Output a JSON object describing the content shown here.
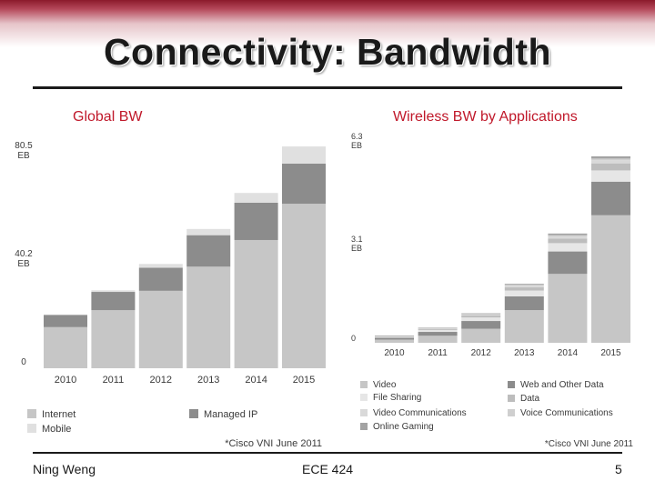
{
  "slide": {
    "title": "Connectivity: Bandwidth",
    "subtitle_left": "Global BW",
    "subtitle_right": "Wireless BW by Applications"
  },
  "footer": {
    "author": "Ning Weng",
    "course": "ECE 424",
    "page": "5"
  },
  "colors": {
    "brand_red": "#c0182a",
    "band_red": "#8b1a2b"
  },
  "chart_data": [
    {
      "type": "bar",
      "stacked": true,
      "title": "Global BW",
      "categories": [
        "2010",
        "2011",
        "2012",
        "2013",
        "2014",
        "2015"
      ],
      "ylim": [
        0,
        80.5
      ],
      "yticks": [
        {
          "value": 0,
          "label": "0"
        },
        {
          "value": 40.2,
          "label": "40.2\nEB"
        },
        {
          "value": 80.5,
          "label": "80.5\nEB"
        }
      ],
      "series": [
        {
          "name": "Internet",
          "color": "#c6c6c6",
          "values": [
            15.3,
            21.6,
            28.8,
            37.8,
            47.7,
            61.2
          ]
        },
        {
          "name": "Managed IP",
          "color": "#8c8c8c",
          "values": [
            4.5,
            6.8,
            8.6,
            11.7,
            13.9,
            14.9
          ]
        },
        {
          "name": "Mobile",
          "color": "#e0e0e0",
          "values": [
            0.2,
            0.6,
            1.4,
            2.3,
            3.6,
            6.4
          ]
        }
      ],
      "legend": [
        "Internet",
        "Managed IP",
        "Mobile"
      ],
      "source_note": "*Cisco VNI June 2011"
    },
    {
      "type": "bar",
      "stacked": true,
      "title": "Wireless BW by Applications",
      "categories": [
        "2010",
        "2011",
        "2012",
        "2013",
        "2014",
        "2015"
      ],
      "ylim": [
        0,
        6.3
      ],
      "yticks": [
        {
          "value": 0,
          "label": "0"
        },
        {
          "value": 3.1,
          "label": "3.1\nEB"
        },
        {
          "value": 6.3,
          "label": "6.3\nEB"
        }
      ],
      "series": [
        {
          "name": "Video",
          "color": "#c6c6c6",
          "values": [
            0.1,
            0.22,
            0.44,
            1.02,
            2.15,
            3.98
          ]
        },
        {
          "name": "Web and Other Data",
          "color": "#8c8c8c",
          "values": [
            0.06,
            0.12,
            0.24,
            0.43,
            0.7,
            1.05
          ]
        },
        {
          "name": "File Sharing",
          "color": "#e6e6e6",
          "values": [
            0.03,
            0.06,
            0.11,
            0.18,
            0.26,
            0.35
          ]
        },
        {
          "name": "Data",
          "color": "#bdbdbd",
          "values": [
            0.02,
            0.03,
            0.06,
            0.1,
            0.14,
            0.22
          ]
        },
        {
          "name": "Video Communications",
          "color": "#d9d9d9",
          "values": [
            0.01,
            0.02,
            0.03,
            0.05,
            0.07,
            0.1
          ]
        },
        {
          "name": "Voice Communications",
          "color": "#cfcfcf",
          "values": [
            0.005,
            0.01,
            0.02,
            0.03,
            0.04,
            0.05
          ]
        },
        {
          "name": "Online Gaming",
          "color": "#a3a3a3",
          "values": [
            0.005,
            0.01,
            0.02,
            0.03,
            0.05,
            0.07
          ]
        }
      ],
      "legend": [
        "Video",
        "Web and Other Data",
        "File Sharing",
        "Data",
        "Video Communications",
        "Voice Communications",
        "Online Gaming"
      ],
      "source_note": "*Cisco VNI June 2011"
    }
  ]
}
